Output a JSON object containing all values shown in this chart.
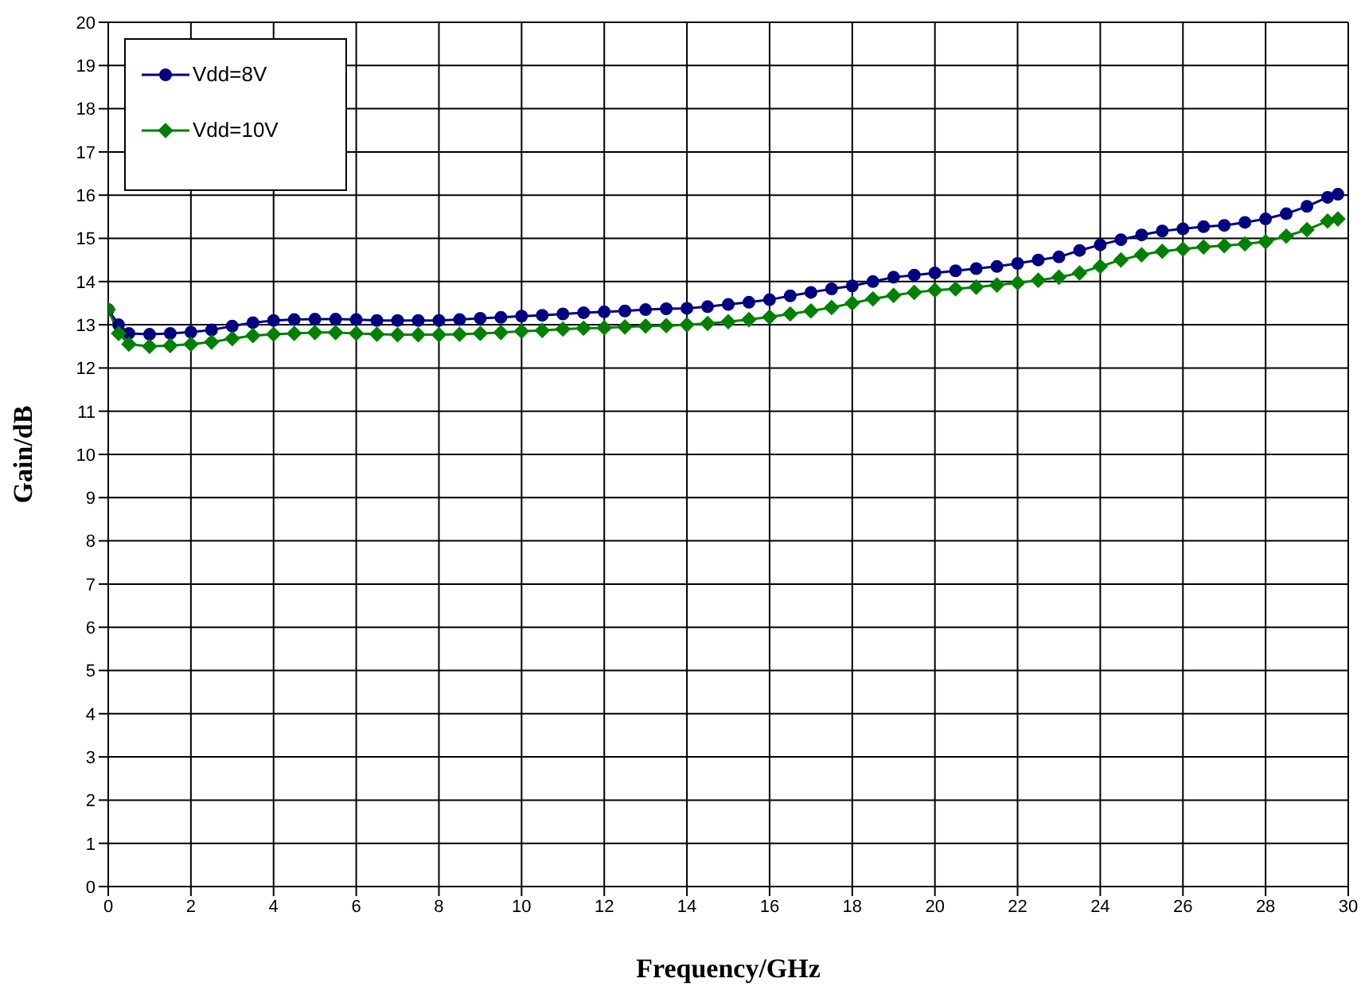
{
  "chart_data": {
    "type": "line",
    "xlabel": "Frequency/GHz",
    "ylabel": "Gain/dB",
    "x": [
      0,
      0.25,
      0.5,
      1,
      1.5,
      2,
      2.5,
      3,
      3.5,
      4,
      4.5,
      5,
      5.5,
      6,
      6.5,
      7,
      7.5,
      8,
      8.5,
      9,
      9.5,
      10,
      10.5,
      11,
      11.5,
      12,
      12.5,
      13,
      13.5,
      14,
      14.5,
      15,
      15.5,
      16,
      16.5,
      17,
      17.5,
      18,
      18.5,
      19,
      19.5,
      20,
      20.5,
      21,
      21.5,
      22,
      22.5,
      23,
      23.5,
      24,
      24.5,
      25,
      25.5,
      26,
      26.5,
      27,
      27.5,
      28,
      28.5,
      29,
      29.5,
      29.75
    ],
    "series": [
      {
        "name": "Vdd=8V",
        "color": "#000080",
        "marker": "circle",
        "values": [
          13.35,
          13.0,
          12.8,
          12.78,
          12.8,
          12.83,
          12.88,
          12.97,
          13.05,
          13.1,
          13.12,
          13.13,
          13.13,
          13.12,
          13.1,
          13.1,
          13.1,
          13.1,
          13.12,
          13.15,
          13.17,
          13.2,
          13.22,
          13.25,
          13.28,
          13.3,
          13.32,
          13.35,
          13.37,
          13.38,
          13.42,
          13.47,
          13.52,
          13.58,
          13.67,
          13.75,
          13.83,
          13.9,
          14.0,
          14.1,
          14.15,
          14.2,
          14.25,
          14.3,
          14.35,
          14.42,
          14.5,
          14.57,
          14.72,
          14.85,
          14.97,
          15.08,
          15.17,
          15.22,
          15.27,
          15.3,
          15.37,
          15.45,
          15.57,
          15.74,
          15.95,
          16.02
        ]
      },
      {
        "name": "Vdd=10V",
        "color": "#008000",
        "marker": "diamond",
        "values": [
          13.35,
          12.8,
          12.55,
          12.5,
          12.52,
          12.55,
          12.6,
          12.68,
          12.75,
          12.78,
          12.8,
          12.82,
          12.82,
          12.8,
          12.78,
          12.77,
          12.77,
          12.77,
          12.78,
          12.8,
          12.82,
          12.85,
          12.87,
          12.9,
          12.92,
          12.93,
          12.95,
          12.97,
          12.98,
          13.0,
          13.03,
          13.07,
          13.12,
          13.18,
          13.25,
          13.32,
          13.4,
          13.5,
          13.6,
          13.68,
          13.75,
          13.8,
          13.83,
          13.87,
          13.92,
          13.97,
          14.03,
          14.1,
          14.2,
          14.35,
          14.5,
          14.62,
          14.7,
          14.75,
          14.8,
          14.83,
          14.87,
          14.92,
          15.05,
          15.2,
          15.4,
          15.45
        ]
      }
    ],
    "xlim": [
      0,
      30
    ],
    "xticks": [
      0,
      2,
      4,
      6,
      8,
      10,
      12,
      14,
      16,
      18,
      20,
      22,
      24,
      26,
      28,
      30
    ],
    "ylim": [
      0,
      20
    ],
    "yticks": [
      0,
      1,
      2,
      3,
      4,
      5,
      6,
      7,
      8,
      9,
      10,
      11,
      12,
      13,
      14,
      15,
      16,
      17,
      18,
      19,
      20
    ],
    "grid": true,
    "legend": "top left",
    "line_style": "solid"
  }
}
